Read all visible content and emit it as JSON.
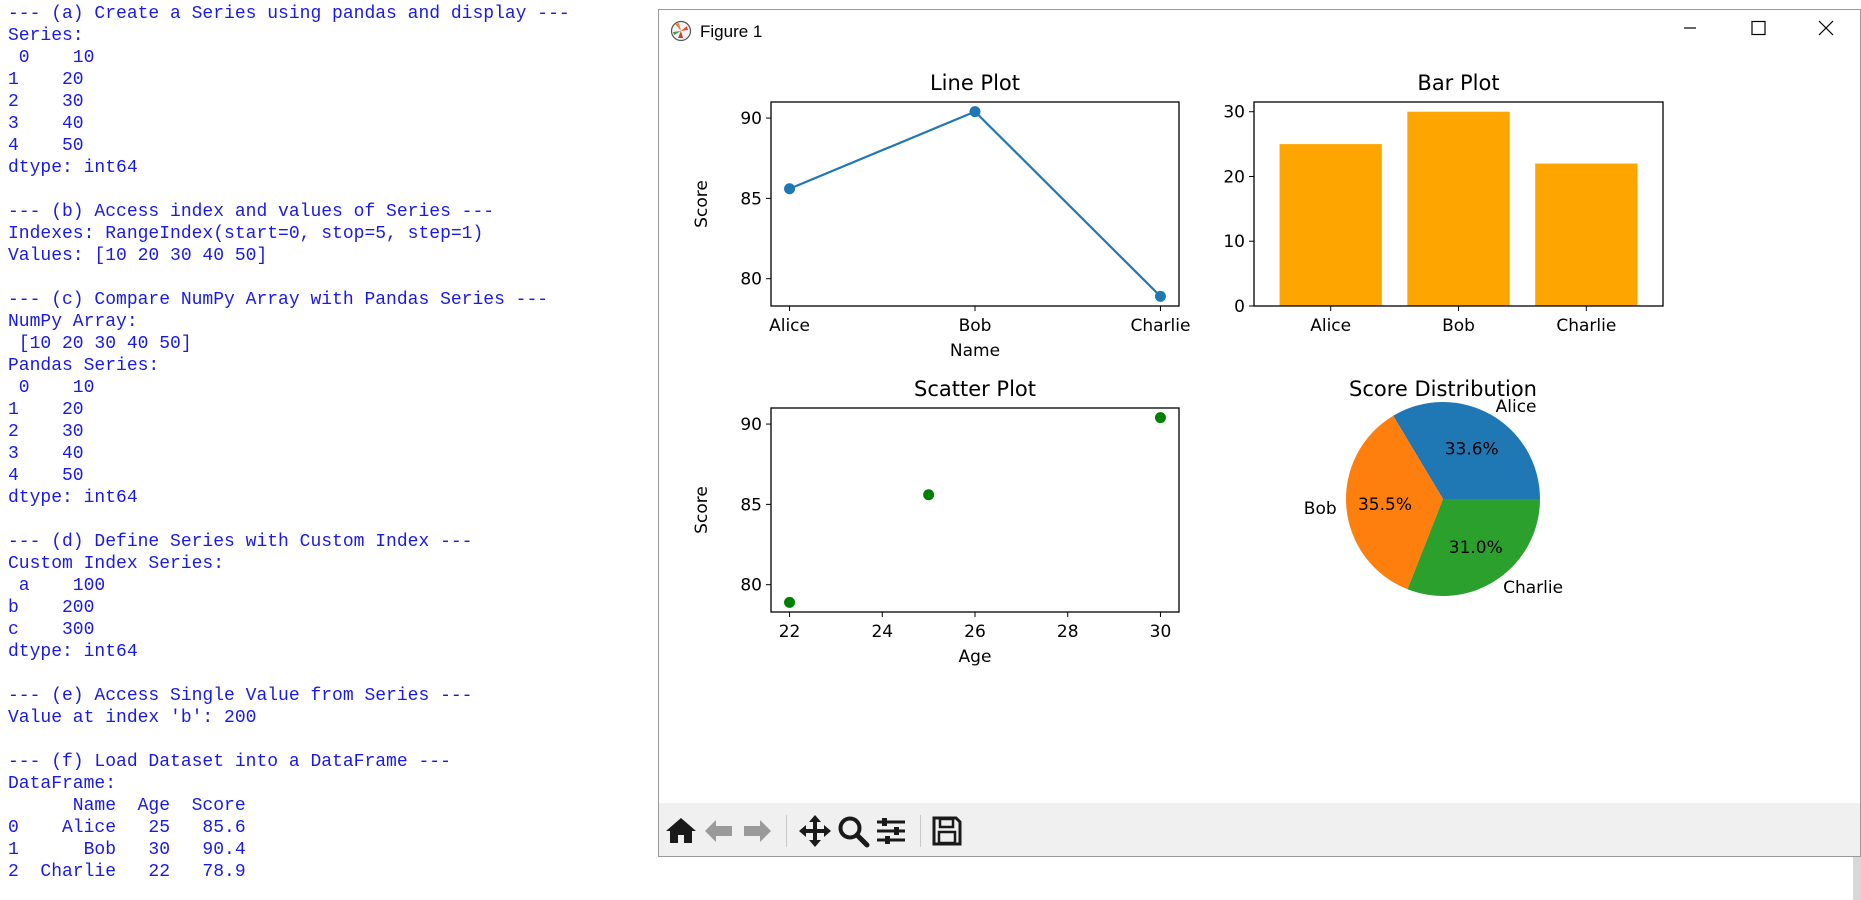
{
  "console": {
    "lines": [
      "--- (a) Create a Series using pandas and display ---",
      "Series:",
      " 0    10",
      "1    20",
      "2    30",
      "3    40",
      "4    50",
      "dtype: int64",
      "",
      "--- (b) Access index and values of Series ---",
      "Indexes: RangeIndex(start=0, stop=5, step=1)",
      "Values: [10 20 30 40 50]",
      "",
      "--- (c) Compare NumPy Array with Pandas Series ---",
      "NumPy Array:",
      " [10 20 30 40 50]",
      "Pandas Series:",
      " 0    10",
      "1    20",
      "2    30",
      "3    40",
      "4    50",
      "dtype: int64",
      "",
      "--- (d) Define Series with Custom Index ---",
      "Custom Index Series:",
      " a    100",
      "b    200",
      "c    300",
      "dtype: int64",
      "",
      "--- (e) Access Single Value from Series ---",
      "Value at index 'b': 200",
      "",
      "--- (f) Load Dataset into a DataFrame ---",
      "DataFrame:",
      "      Name  Age  Score",
      "0    Alice   25   85.6",
      "1      Bob   30   90.4",
      "2  Charlie   22   78.9"
    ]
  },
  "window": {
    "title": "Figure 1",
    "controls": {
      "minimize": "minimize-icon",
      "maximize": "maximize-icon",
      "close": "close-icon"
    }
  },
  "toolbar": {
    "buttons": [
      "home-icon",
      "back-icon",
      "forward-icon",
      "pan-icon",
      "zoom-icon",
      "configure-subplots-icon",
      "save-icon"
    ]
  },
  "colors": {
    "console_text": "#1a1ae6",
    "line": "#1f77b4",
    "bar": "#ffa500",
    "scatter": "#008000",
    "pie": [
      "#1f77b4",
      "#ff7f0e",
      "#2ca02c"
    ]
  },
  "chart_data": [
    {
      "type": "line",
      "title": "Line Plot",
      "xlabel": "Name",
      "ylabel": "Score",
      "categories": [
        "Alice",
        "Bob",
        "Charlie"
      ],
      "values": [
        85.6,
        90.4,
        78.9
      ],
      "yticks": [
        80,
        85,
        90
      ],
      "ylim": [
        78.3,
        91.0
      ],
      "grid": false
    },
    {
      "type": "bar",
      "title": "Bar Plot",
      "xlabel": "",
      "ylabel": "",
      "categories": [
        "Alice",
        "Bob",
        "Charlie"
      ],
      "values": [
        25,
        30,
        22
      ],
      "yticks": [
        0,
        10,
        20,
        30
      ],
      "ylim": [
        0,
        31.5
      ],
      "grid": false
    },
    {
      "type": "scatter",
      "title": "Scatter Plot",
      "xlabel": "Age",
      "ylabel": "Score",
      "x": [
        25,
        30,
        22
      ],
      "y": [
        85.6,
        90.4,
        78.9
      ],
      "xticks": [
        22,
        24,
        26,
        28,
        30
      ],
      "yticks": [
        80,
        85,
        90
      ],
      "xlim": [
        21.6,
        30.4
      ],
      "ylim": [
        78.3,
        91.0
      ],
      "grid": false
    },
    {
      "type": "pie",
      "title": "Score Distribution",
      "labels": [
        "Alice",
        "Bob",
        "Charlie"
      ],
      "values": [
        85.6,
        90.4,
        78.9
      ],
      "percent_labels": [
        "33.6%",
        "35.5%",
        "31.0%"
      ]
    }
  ]
}
